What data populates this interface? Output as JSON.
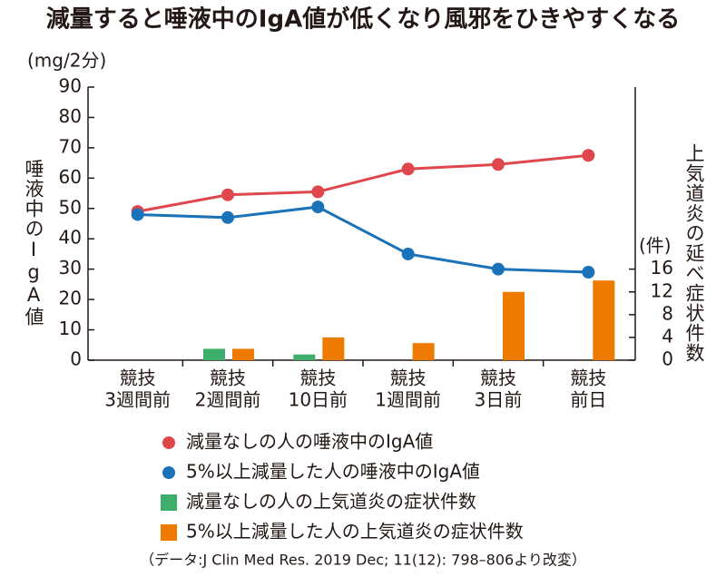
{
  "chart_data": {
    "type": "line_bar",
    "title": "減量すると唾液中のIgA値が低くなり風邪をひきやすくなる",
    "y_unit": "(mg/2分)",
    "ylabel": "唾液中のIgA値",
    "y2_unit": "(件)",
    "y2label": "上気道炎の延べ症状件数",
    "source": "（データ:J Clin Med Res. 2019 Dec; 11(12): 798–806より改変）",
    "categories": [
      [
        "競技",
        "3週間前"
      ],
      [
        "競技",
        "2週間前"
      ],
      [
        "競技",
        "10日前"
      ],
      [
        "競技",
        "1週間前"
      ],
      [
        "競技",
        "3日前"
      ],
      [
        "競技",
        "前日"
      ]
    ],
    "ylim": [
      0,
      90
    ],
    "yticks": [
      0,
      10,
      20,
      30,
      40,
      50,
      60,
      70,
      80,
      90
    ],
    "y2lim": [
      0,
      48
    ],
    "y2ticks": [
      0,
      4,
      8,
      12,
      16
    ],
    "series": [
      {
        "name": "減量なしの人の唾液中のIgA値",
        "type": "line",
        "color": "#e0474c",
        "values": [
          49,
          54.5,
          55.5,
          63,
          64.5,
          67.5
        ]
      },
      {
        "name": "5%以上減量した人の唾液中のIgA値",
        "type": "line",
        "color": "#1a72b8",
        "values": [
          48,
          47,
          50.5,
          35,
          30,
          29
        ]
      },
      {
        "name": "減量なしの人の上気道炎の症状件数",
        "type": "bar",
        "axis": "y2",
        "color": "#3dae6b",
        "values": [
          0,
          2,
          1,
          0,
          0,
          0
        ]
      },
      {
        "name": "5%以上減量した人の上気道炎の症状件数",
        "type": "bar",
        "axis": "y2",
        "color": "#ee7b00",
        "values": [
          0,
          2,
          4,
          3,
          12,
          14
        ]
      }
    ]
  }
}
